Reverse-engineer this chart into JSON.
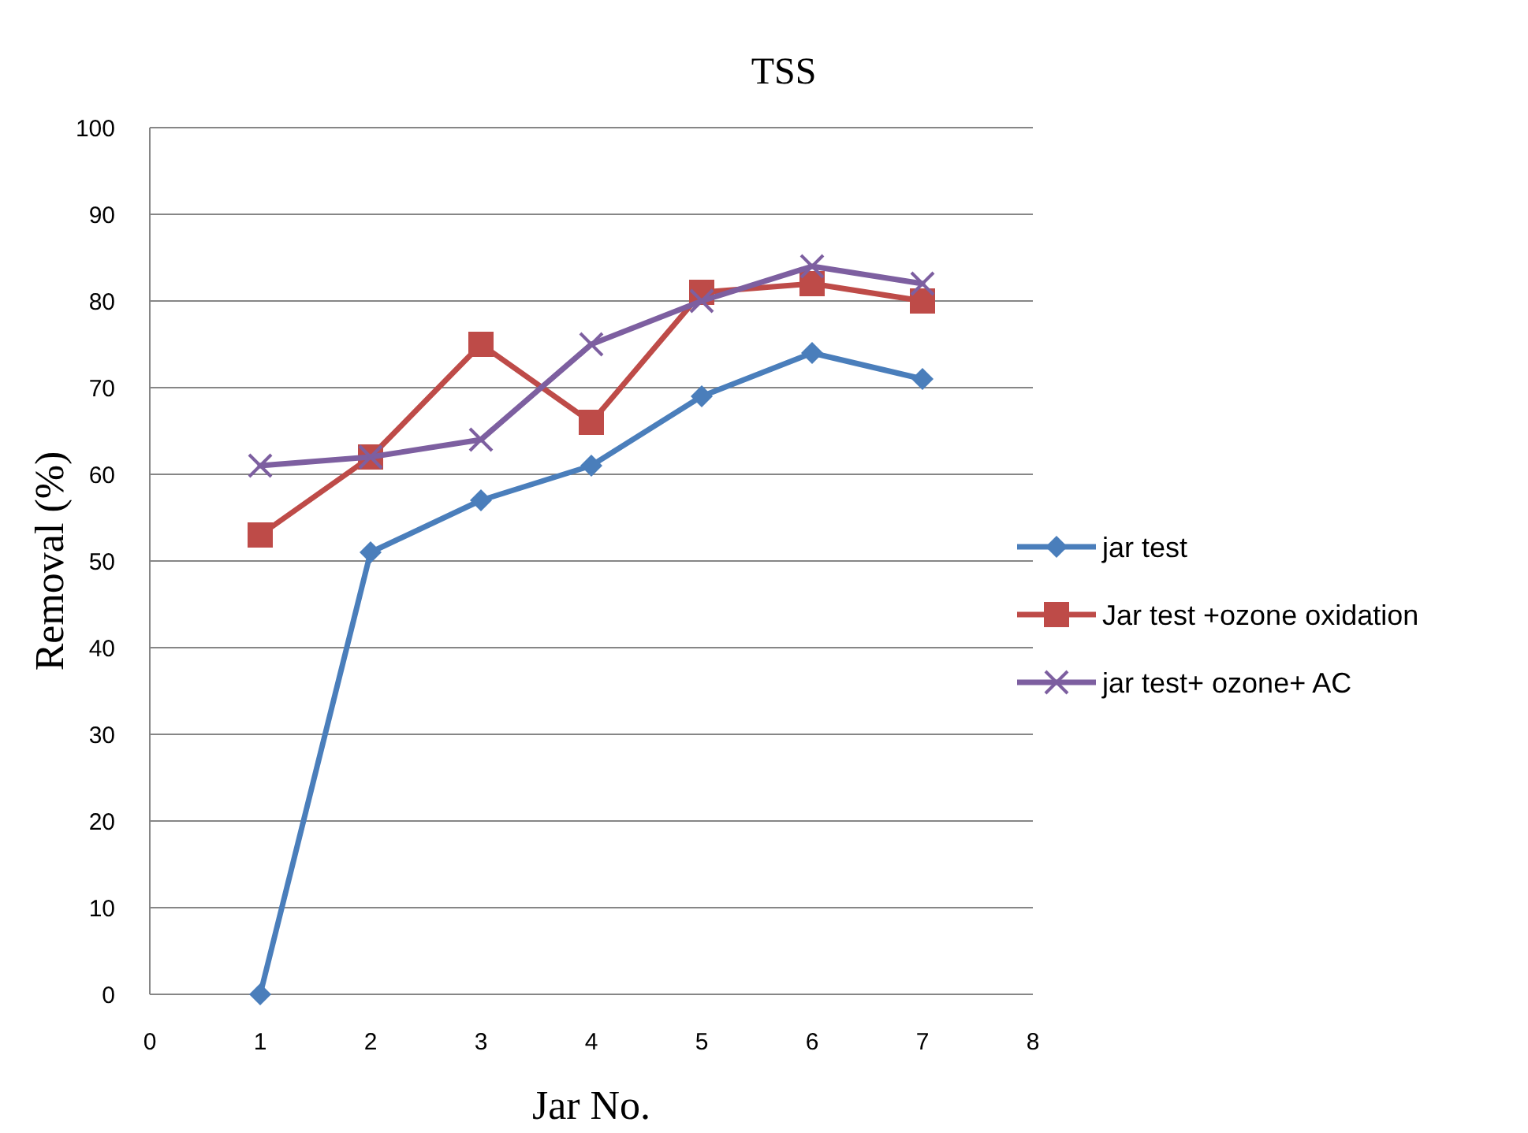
{
  "chart_data": {
    "type": "line",
    "title": "TSS",
    "xlabel": "Jar No.",
    "ylabel": "Removal (%)",
    "x": [
      1,
      2,
      3,
      4,
      5,
      6,
      7
    ],
    "series": [
      {
        "name": "jar test",
        "color": "#4a7ebb",
        "marker": "diamond",
        "values": [
          0,
          51,
          57,
          61,
          69,
          74,
          71
        ]
      },
      {
        "name": "Jar test +ozone oxidation",
        "color": "#be4b48",
        "marker": "square",
        "values": [
          53,
          62,
          75,
          66,
          81,
          82,
          80
        ]
      },
      {
        "name": "jar test+ ozone+ AC",
        "color": "#7d5fa0",
        "marker": "cross",
        "values": [
          61,
          62,
          64,
          75,
          80,
          84,
          82
        ]
      }
    ],
    "xlim": [
      0,
      8
    ],
    "xticks": [
      0,
      1,
      2,
      3,
      4,
      5,
      6,
      7,
      8
    ],
    "ylim": [
      0,
      100
    ],
    "yticks": [
      0,
      10,
      20,
      30,
      40,
      50,
      60,
      70,
      80,
      90,
      100
    ],
    "grid": "y",
    "legend": "right",
    "line_style": "solid"
  }
}
